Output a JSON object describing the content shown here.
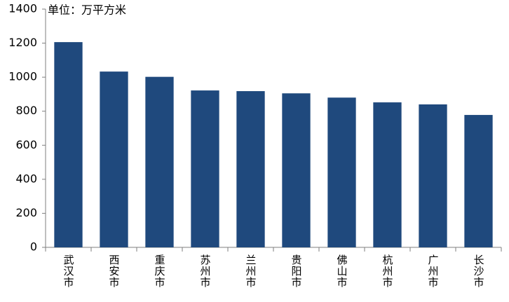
{
  "chart_data": {
    "type": "bar",
    "title": "单位：万平方米",
    "categories": [
      "武汉市",
      "西安市",
      "重庆市",
      "苏州市",
      "兰州市",
      "贵阳市",
      "佛山市",
      "杭州市",
      "广州市",
      "长沙市"
    ],
    "values": [
      1206,
      1033,
      1002,
      922,
      918,
      905,
      880,
      852,
      840,
      778
    ],
    "color": "#1f497d",
    "ylim": [
      0,
      1400
    ],
    "yticks": [
      0,
      200,
      400,
      600,
      800,
      1000,
      1200,
      1400
    ],
    "grid": false
  }
}
